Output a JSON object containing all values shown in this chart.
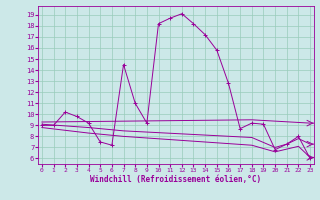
{
  "xlabel": "Windchill (Refroidissement éolien,°C)",
  "background_color": "#cce8e8",
  "grid_color": "#99ccbb",
  "line_color": "#990099",
  "x_ticks": [
    0,
    1,
    2,
    3,
    4,
    5,
    6,
    7,
    8,
    9,
    10,
    11,
    12,
    13,
    14,
    15,
    16,
    17,
    18,
    19,
    20,
    21,
    22,
    23
  ],
  "y_ticks": [
    6,
    7,
    8,
    9,
    10,
    11,
    12,
    13,
    14,
    15,
    16,
    17,
    18,
    19
  ],
  "ylim": [
    5.5,
    19.8
  ],
  "xlim": [
    -0.3,
    23.3
  ],
  "series1_x": [
    0,
    1,
    2,
    3,
    4,
    5,
    6,
    7,
    8,
    9,
    10,
    11,
    12,
    13,
    14,
    15,
    16,
    17,
    18,
    19,
    20,
    21,
    22,
    23
  ],
  "series1_y": [
    9.0,
    9.0,
    10.2,
    9.8,
    9.2,
    7.5,
    7.2,
    14.5,
    11.0,
    9.2,
    18.2,
    18.7,
    19.1,
    18.2,
    17.2,
    15.8,
    12.8,
    8.7,
    9.2,
    9.1,
    6.8,
    7.3,
    8.0,
    6.0
  ],
  "series2_x": [
    0,
    18,
    23
  ],
  "series2_y": [
    9.3,
    9.5,
    9.2
  ],
  "series3_x": [
    0,
    4,
    7,
    18,
    20,
    21,
    22,
    23
  ],
  "series3_y": [
    9.1,
    8.8,
    8.5,
    7.9,
    7.0,
    7.3,
    7.8,
    7.3
  ],
  "series4_x": [
    0,
    4,
    7,
    18,
    20,
    22,
    23
  ],
  "series4_y": [
    8.8,
    8.3,
    8.0,
    7.2,
    6.6,
    7.1,
    6.1
  ]
}
